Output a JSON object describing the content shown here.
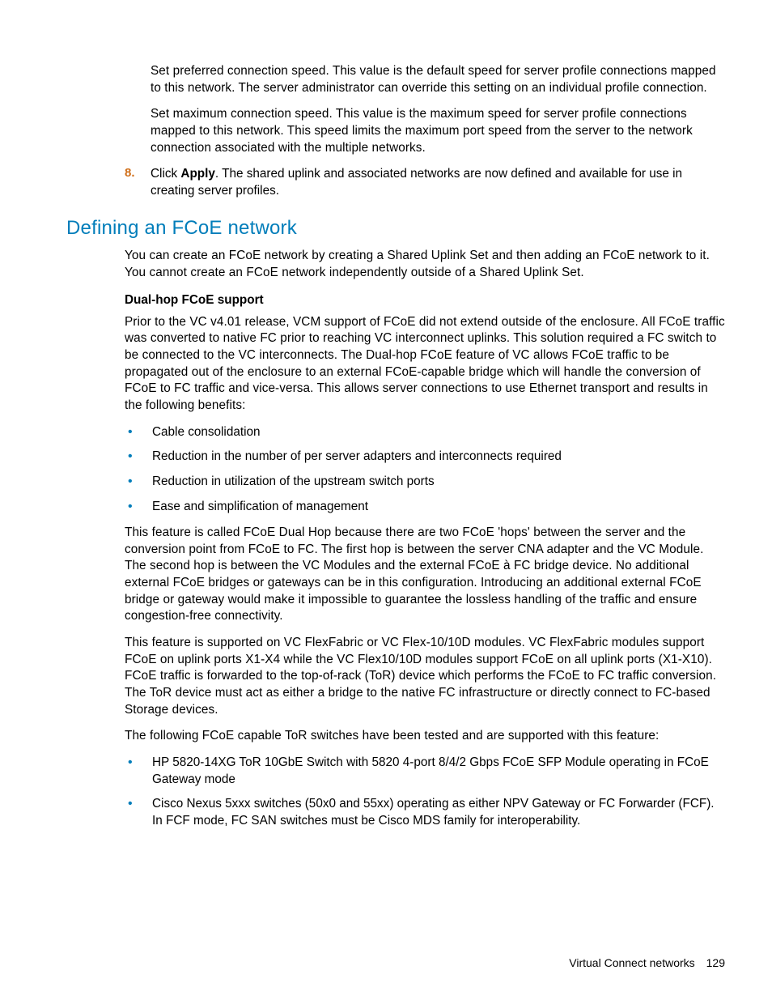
{
  "top": {
    "p1": "Set preferred connection speed. This value is the default speed for server profile connections mapped to this network. The server administrator can override this setting on an individual profile connection.",
    "p2": "Set maximum connection speed. This value is the maximum speed for server profile connections mapped to this network. This speed limits the maximum port speed from the server to the network connection associated with the multiple networks."
  },
  "step8": {
    "num": "8.",
    "prefix": "Click ",
    "bold": "Apply",
    "suffix": ". The shared uplink and associated networks are now defined and available for use in creating server profiles."
  },
  "heading": "Defining an FCoE network",
  "intro": "You can create an FCoE network by creating a Shared Uplink Set and then adding an FCoE network to it. You cannot create an FCoE network independently outside of a Shared Uplink Set.",
  "subhead": "Dual-hop FCoE support",
  "dual_p1": "Prior to the VC v4.01 release, VCM support of FCoE did not extend outside of the enclosure. All FCoE traffic was converted to native FC prior to reaching VC interconnect uplinks. This solution required a FC switch to be connected to the VC interconnects. The Dual-hop FCoE feature of VC allows FCoE traffic to be propagated out of the enclosure to an external FCoE-capable bridge which will handle the conversion of FCoE to FC traffic and vice-versa. This allows server connections to use Ethernet transport and results in the following benefits:",
  "benefit_bullets": [
    "Cable consolidation",
    "Reduction in the number of per server adapters and interconnects required",
    "Reduction in utilization of the upstream switch ports",
    "Ease and simplification of management"
  ],
  "dual_p2": "This feature is called FCoE Dual Hop because there are two FCoE 'hops' between the server and the conversion point from FCoE to FC. The first hop is between the server CNA adapter and the VC Module. The second hop is between the VC Modules and the external FCoE à FC bridge device. No additional external FCoE bridges or gateways can be in this configuration. Introducing an additional external FCoE bridge or gateway would make it impossible to guarantee the lossless handling of the traffic and ensure congestion-free connectivity.",
  "dual_p3": "This feature is supported on VC FlexFabric or VC Flex-10/10D modules. VC FlexFabric modules support FCoE on uplink ports X1-X4 while the VC Flex10/10D modules support FCoE on all uplink ports (X1-X10). FCoE traffic is forwarded to the top-of-rack (ToR) device which performs the FCoE to FC traffic conversion. The ToR device must act as either a bridge to the native FC infrastructure or directly connect to FC-based Storage devices.",
  "dual_p4": "The following FCoE capable ToR switches have been tested and are supported with this feature:",
  "switch_bullets": [
    "HP 5820-14XG ToR 10GbE Switch with 5820 4-port 8/4/2 Gbps FCoE SFP Module operating in FCoE Gateway mode",
    "Cisco Nexus 5xxx switches (50x0 and 55xx) operating as either NPV Gateway or FC Forwarder (FCF). In FCF mode, FC SAN switches must be Cisco MDS family for interoperability."
  ],
  "footer": {
    "label": "Virtual Connect networks",
    "page": "129"
  }
}
